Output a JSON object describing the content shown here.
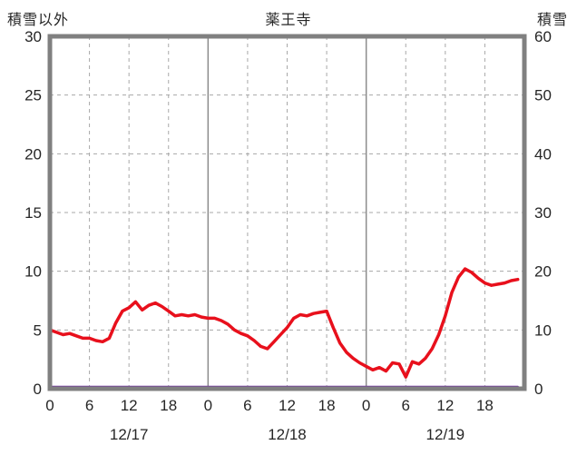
{
  "header": {
    "left_axis_label": "積雪以外",
    "title": "薬王寺",
    "right_axis_label": "積雪"
  },
  "chart_data": {
    "type": "line",
    "title": "薬王寺",
    "left_axis": {
      "label": "積雪以外",
      "min": 0,
      "max": 30,
      "tick_step": 5
    },
    "right_axis": {
      "label": "積雪",
      "min": 0,
      "max": 60,
      "tick_step": 10
    },
    "x_axis": {
      "total_hours": 72,
      "hour_tick_labels": [
        0,
        6,
        12,
        18
      ],
      "day_labels": [
        "12/17",
        "12/18",
        "12/19"
      ]
    },
    "grid": {
      "horizontal_dashed_at_left_values": [
        5,
        10,
        15,
        20,
        25
      ],
      "vertical_dashed_hours_per_day": [
        6,
        12,
        18
      ],
      "vertical_solid_day_boundaries": [
        24,
        48
      ]
    },
    "series": [
      {
        "name": "積雪以外",
        "axis": "left",
        "color": "#e8101c",
        "width": 3.5,
        "values": [
          5.0,
          4.8,
          4.6,
          4.7,
          4.5,
          4.3,
          4.3,
          4.1,
          4.0,
          4.3,
          5.6,
          6.6,
          6.9,
          7.4,
          6.7,
          7.1,
          7.3,
          7.0,
          6.6,
          6.2,
          6.3,
          6.2,
          6.3,
          6.1,
          6.0,
          6.0,
          5.8,
          5.5,
          5.0,
          4.7,
          4.5,
          4.1,
          3.6,
          3.4,
          4.0,
          4.6,
          5.2,
          6.0,
          6.3,
          6.2,
          6.4,
          6.5,
          6.6,
          5.2,
          3.9,
          3.1,
          2.6,
          2.2,
          1.9,
          1.6,
          1.8,
          1.5,
          2.2,
          2.1,
          1.0,
          2.3,
          2.1,
          2.6,
          3.4,
          4.6,
          6.2,
          8.2,
          9.5,
          10.2,
          9.9,
          9.4,
          9.0,
          8.8,
          8.9,
          9.0,
          9.2,
          9.3
        ]
      },
      {
        "name": "積雪",
        "axis": "right",
        "color": "#7030a0",
        "width": 2.5,
        "x": [
          0,
          71
        ],
        "values": [
          0,
          0
        ]
      }
    ],
    "colors": {
      "frame": "#808080",
      "grid_dashed": "#a8a8a8",
      "day_line": "#8c8c8c",
      "text": "#262626"
    }
  }
}
